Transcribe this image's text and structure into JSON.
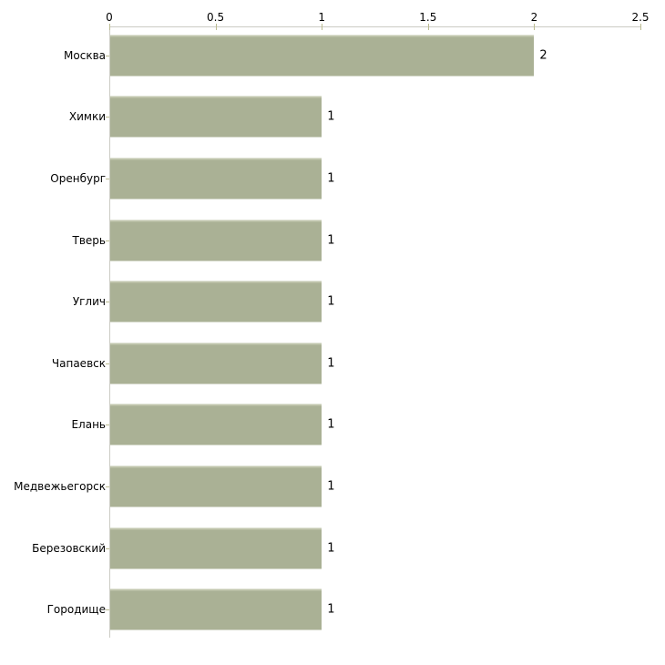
{
  "chart_data": {
    "type": "bar",
    "orientation": "horizontal",
    "title": "",
    "categories": [
      "Москва",
      "Химки",
      "Оренбург",
      "Тверь",
      "Углич",
      "Чапаевск",
      "Елань",
      "Медвежьегорск",
      "Березовский",
      "Городище"
    ],
    "values": [
      2,
      1,
      1,
      1,
      1,
      1,
      1,
      1,
      1,
      1
    ],
    "bar_value_labels": [
      "2",
      "1",
      "1",
      "1",
      "1",
      "1",
      "1",
      "1",
      "1",
      "1"
    ],
    "x_axis": {
      "position": "top",
      "min": 0,
      "max": 2.5,
      "ticks": [
        {
          "value": 0,
          "label": "0"
        },
        {
          "value": 0.5,
          "label": "0.5"
        },
        {
          "value": 1,
          "label": "1"
        },
        {
          "value": 1.5,
          "label": "1.5"
        },
        {
          "value": 2,
          "label": "2"
        },
        {
          "value": 2.5,
          "label": "2.5"
        }
      ]
    },
    "grid": false,
    "legend": false,
    "colors": {
      "bar_fill": "#aab195",
      "bar_top_highlight": "#c2c7ae",
      "axis_line": "#ccccc4",
      "tick_mark": "#bcbc92",
      "label_text": "#000000",
      "background": "#ffffff"
    }
  }
}
